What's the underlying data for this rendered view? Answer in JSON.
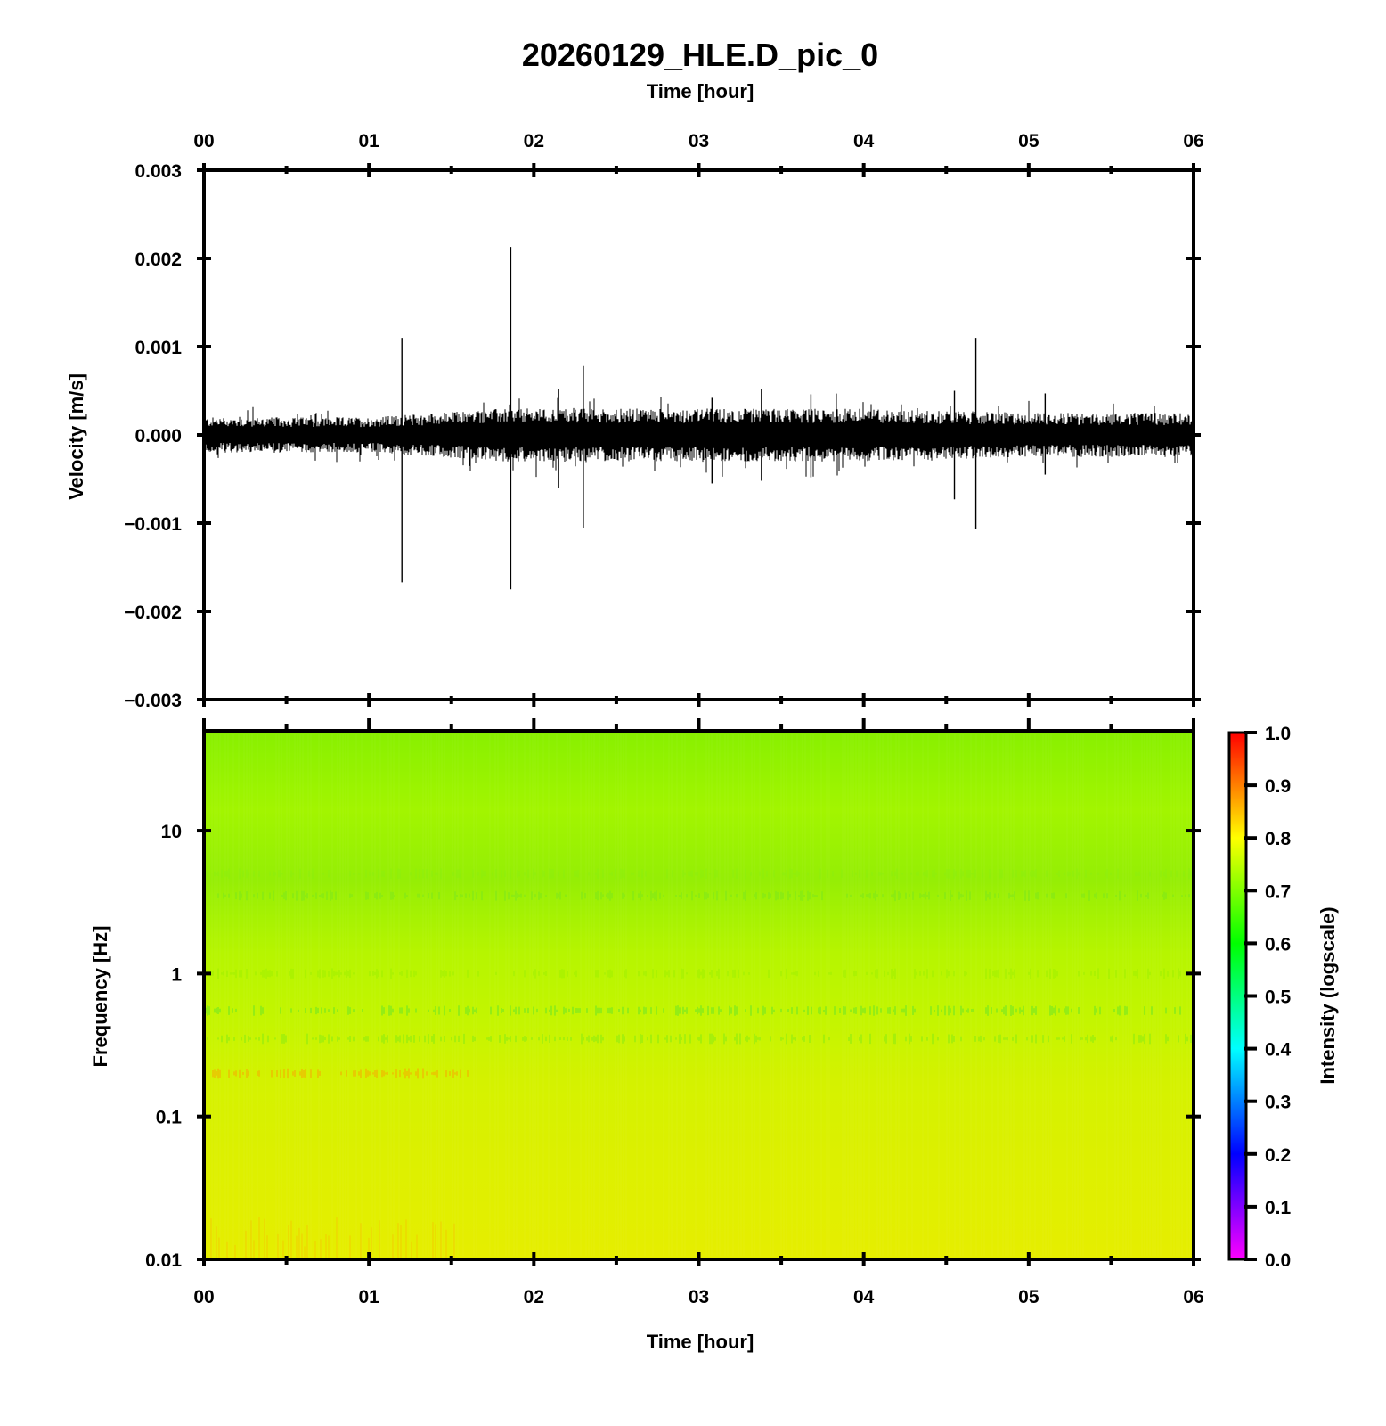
{
  "title": "20260129_HLE.D_pic_0",
  "chart_data": [
    {
      "type": "line",
      "xlabel": "Time [hour]",
      "ylabel": "Velocity [m/s]",
      "xlim": [
        0,
        6
      ],
      "ylim": [
        -0.003,
        0.003
      ],
      "xticks": [
        "00",
        "01",
        "02",
        "03",
        "04",
        "05",
        "06"
      ],
      "yticks": [
        "−0.003",
        "−0.002",
        "−0.001",
        "0.000",
        "0.001",
        "0.002",
        "0.003"
      ],
      "ytick_values": [
        -0.003,
        -0.002,
        -0.001,
        0.0,
        0.001,
        0.002,
        0.003
      ],
      "line_color": "#000000",
      "noise_envelope": [
        {
          "x": 0.0,
          "amp": 0.0002
        },
        {
          "x": 1.0,
          "amp": 0.0002
        },
        {
          "x": 1.8,
          "amp": 0.0003
        },
        {
          "x": 2.5,
          "amp": 0.0003
        },
        {
          "x": 4.0,
          "amp": 0.0003
        },
        {
          "x": 5.0,
          "amp": 0.00025
        },
        {
          "x": 6.0,
          "amp": 0.00025
        }
      ],
      "spikes": [
        {
          "x": 1.2,
          "max": 0.0011,
          "min": -0.00167
        },
        {
          "x": 1.86,
          "max": 0.00213,
          "min": -0.00175
        },
        {
          "x": 2.15,
          "max": 0.00052,
          "min": -0.0006
        },
        {
          "x": 2.3,
          "max": 0.00078,
          "min": -0.00105
        },
        {
          "x": 3.08,
          "max": 0.00042,
          "min": -0.00055
        },
        {
          "x": 3.38,
          "max": 0.00052,
          "min": -0.00052
        },
        {
          "x": 3.68,
          "max": 0.00046,
          "min": -0.00048
        },
        {
          "x": 4.55,
          "max": 0.0005,
          "min": -0.00073
        },
        {
          "x": 4.68,
          "max": 0.0011,
          "min": -0.00107
        },
        {
          "x": 5.1,
          "max": 0.00047,
          "min": -0.00045
        }
      ]
    },
    {
      "type": "heatmap",
      "xlabel": "Time [hour]",
      "ylabel": "Frequency [Hz]",
      "xlim": [
        0,
        6
      ],
      "ylim": [
        0.01,
        50
      ],
      "yscale": "log",
      "xticks": [
        "00",
        "01",
        "02",
        "03",
        "04",
        "05",
        "06"
      ],
      "yticks": [
        "0.01",
        "0.1",
        "1",
        "10"
      ],
      "ytick_values": [
        0.01,
        0.1,
        1,
        10
      ],
      "colorbar": {
        "label": "Intensity (logscale)",
        "range": [
          0.0,
          1.0
        ],
        "ticks": [
          "0.0",
          "0.1",
          "0.2",
          "0.3",
          "0.4",
          "0.5",
          "0.6",
          "0.7",
          "0.8",
          "0.9",
          "1.0"
        ],
        "colormap": [
          "#ff00ff",
          "#0000ff",
          "#00ffff",
          "#00ff00",
          "#ffff00",
          "#ff0000"
        ]
      },
      "intensity_profile": [
        {
          "freq": 50,
          "intensity": 0.7
        },
        {
          "freq": 10,
          "intensity": 0.74
        },
        {
          "freq": 3,
          "intensity": 0.72
        },
        {
          "freq": 1,
          "intensity": 0.76
        },
        {
          "freq": 0.5,
          "intensity": 0.74
        },
        {
          "freq": 0.2,
          "intensity": 0.8
        },
        {
          "freq": 0.05,
          "intensity": 0.79
        },
        {
          "freq": 0.01,
          "intensity": 0.82
        }
      ]
    }
  ]
}
